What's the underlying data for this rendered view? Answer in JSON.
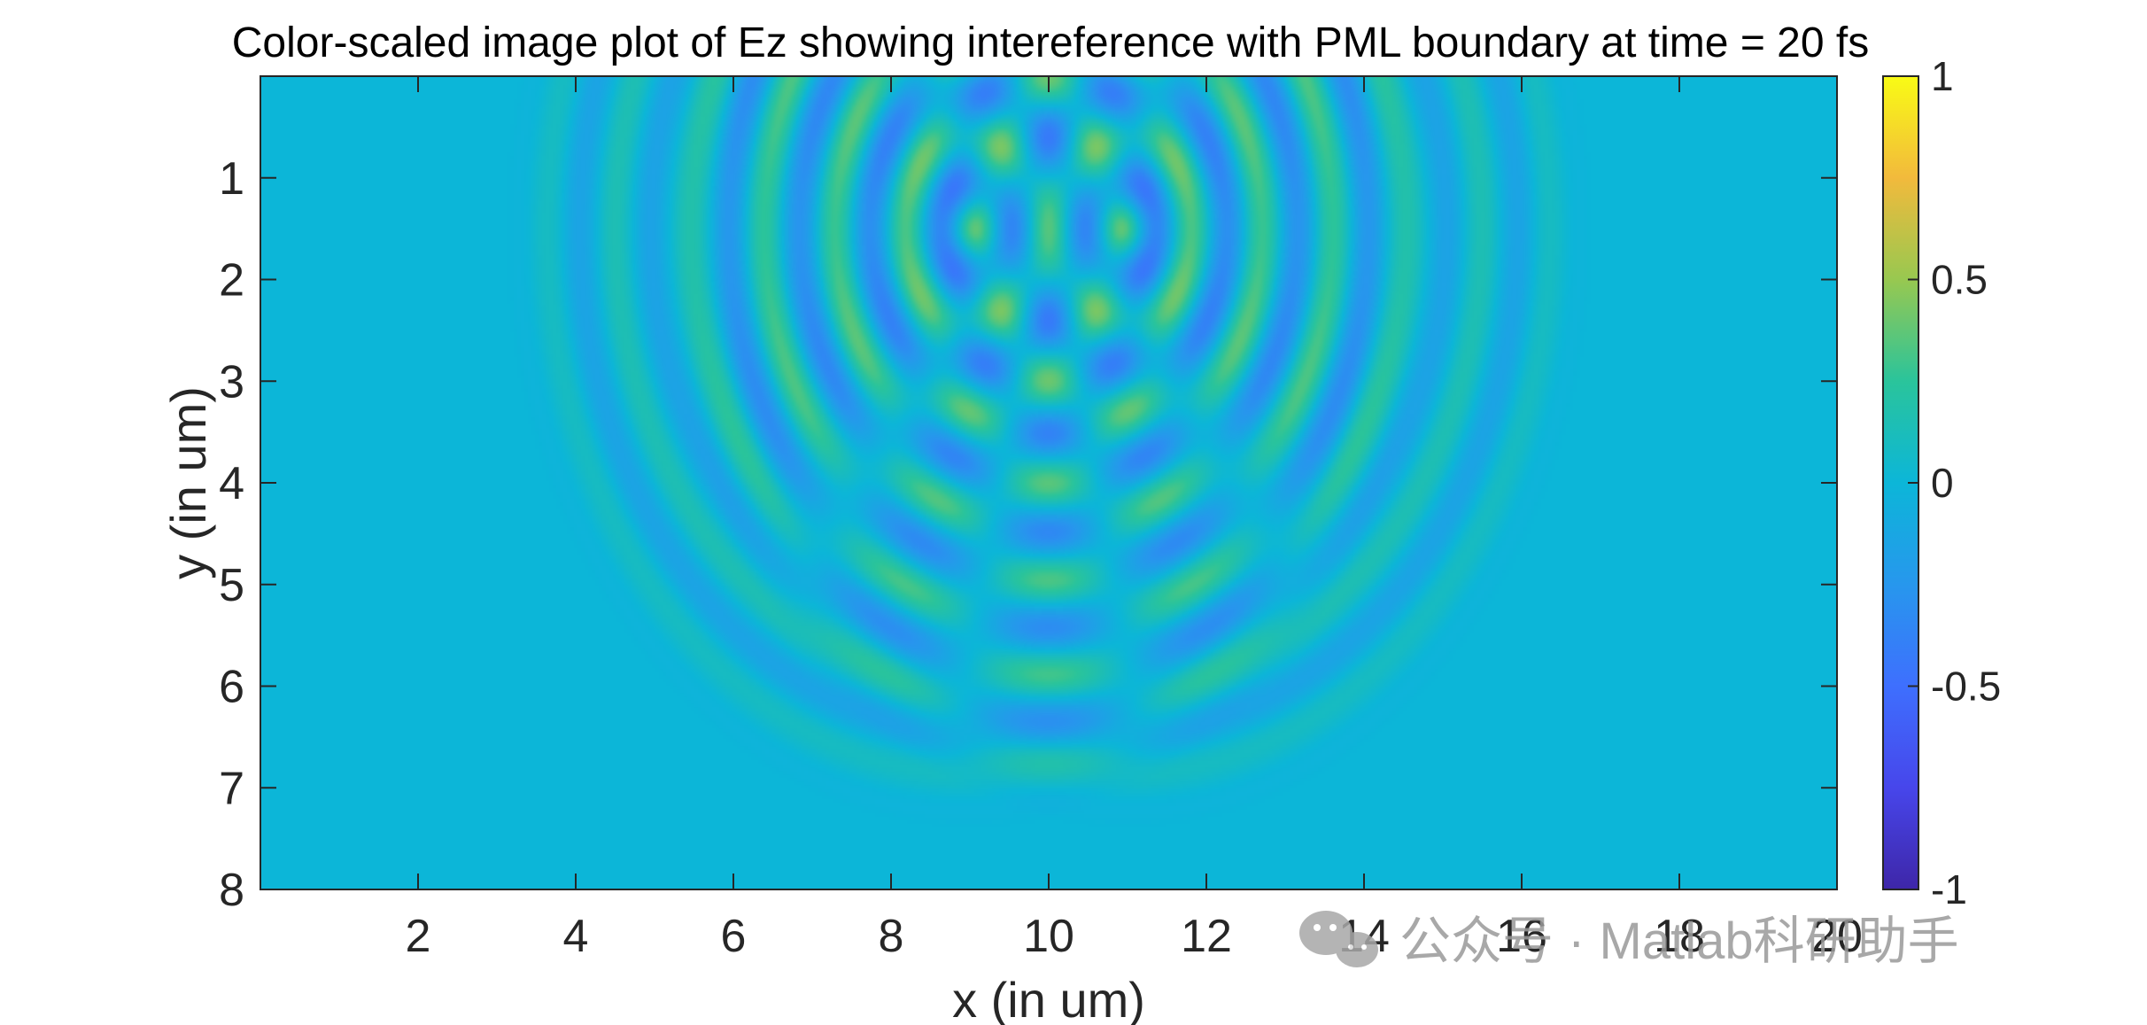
{
  "chart_data": {
    "type": "heatmap",
    "title": "Color-scaled image plot of Ez showing intereference with PML boundary at time = 20 fs",
    "xlabel": "x (in um)",
    "ylabel": "y (in um)",
    "xlim": [
      0,
      20
    ],
    "ylim": [
      0,
      8
    ],
    "y_axis_direction": "reversed",
    "x_ticks": [
      2,
      4,
      6,
      8,
      10,
      12,
      14,
      16,
      18,
      20
    ],
    "x_tick_labels": [
      "2",
      "4",
      "6",
      "8",
      "10",
      "12",
      "14",
      "16",
      "18",
      "20"
    ],
    "y_ticks": [
      1,
      2,
      3,
      4,
      5,
      6,
      7,
      8
    ],
    "y_tick_labels": [
      "1",
      "2",
      "3",
      "4",
      "5",
      "6",
      "7",
      "8"
    ],
    "colormap": "parula",
    "color_limits": [
      -1,
      1
    ],
    "colorbar": {
      "ticks": [
        1,
        0.5,
        0,
        -0.5,
        -1
      ],
      "tick_labels": [
        "1",
        "0.5",
        "0",
        "-0.5",
        "-1"
      ],
      "placement": "right"
    },
    "field": {
      "description_of_pattern": "two point sources interfering",
      "sources": [
        {
          "x": 9,
          "y": 1.5
        },
        {
          "x": 11,
          "y": 1.5
        }
      ],
      "wavelength": 0.9,
      "pulse_front_radius": 5.9,
      "peak_amplitude": 0.5
    }
  },
  "watermark": {
    "text": "公众号 · Matlab科研助手",
    "icon": "wechat-icon"
  }
}
